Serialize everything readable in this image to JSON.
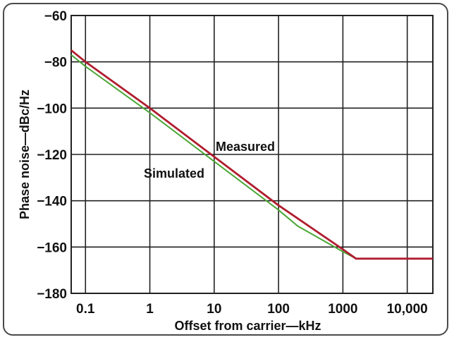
{
  "chart_data": {
    "type": "line",
    "title": "",
    "xlabel": "Offset from carrier—kHz",
    "ylabel": "Phase noise—dBc/Hz",
    "xscale": "log",
    "xlim": [
      0.06,
      25000
    ],
    "ylim": [
      -180,
      -60
    ],
    "x_ticks": [
      0.1,
      1,
      10,
      100,
      1000,
      10000
    ],
    "x_tick_labels": [
      "0.1",
      "1",
      "10",
      "100",
      "1000",
      "10,000"
    ],
    "y_ticks": [
      -60,
      -80,
      -100,
      -120,
      -140,
      -160,
      -180
    ],
    "y_tick_labels": [
      "−60",
      "−80",
      "−100",
      "−120",
      "−140",
      "−160",
      "−180"
    ],
    "grid": true,
    "legend": "inline labels",
    "series": [
      {
        "name": "Measured",
        "color": "#b01c2e",
        "x": [
          0.06,
          0.1,
          1,
          10,
          100,
          1000,
          1600,
          25000
        ],
        "y": [
          -75,
          -80,
          -100,
          -121,
          -142,
          -161,
          -165,
          -165
        ]
      },
      {
        "name": "Simulated",
        "color": "#4aa636",
        "x": [
          0.06,
          0.1,
          1,
          10,
          100,
          200,
          1000,
          1600,
          25000
        ],
        "y": [
          -77,
          -82,
          -102,
          -123,
          -144,
          -151,
          -162,
          -165,
          -165
        ]
      }
    ]
  }
}
